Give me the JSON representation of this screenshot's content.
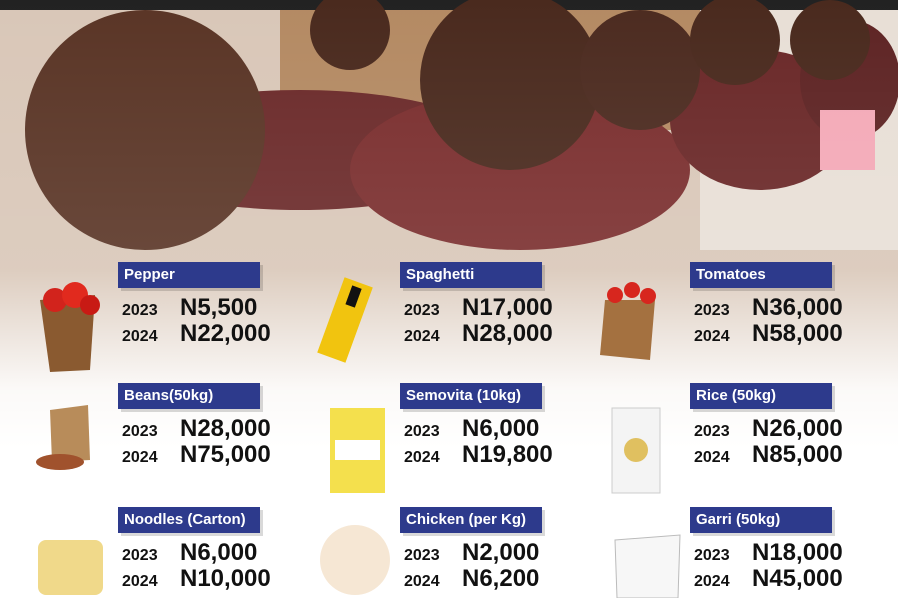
{
  "items": [
    {
      "name": "Pepper",
      "prices": [
        {
          "year": "2023",
          "price": "N5,500"
        },
        {
          "year": "2024",
          "price": "N22,000"
        }
      ]
    },
    {
      "name": "Spaghetti",
      "prices": [
        {
          "year": "2023",
          "price": "N17,000"
        },
        {
          "year": "2024",
          "price": "N28,000"
        }
      ]
    },
    {
      "name": "Tomatoes",
      "prices": [
        {
          "year": "2023",
          "price": "N36,000"
        },
        {
          "year": "2024",
          "price": "N58,000"
        }
      ]
    },
    {
      "name": "Beans(50kg)",
      "prices": [
        {
          "year": "2023",
          "price": "N28,000"
        },
        {
          "year": "2024",
          "price": "N75,000"
        }
      ]
    },
    {
      "name": "Semovita  (10kg)",
      "prices": [
        {
          "year": "2023",
          "price": "N6,000"
        },
        {
          "year": "2024",
          "price": "N19,800"
        }
      ]
    },
    {
      "name": "Rice (50kg)",
      "prices": [
        {
          "year": "2023",
          "price": "N26,000"
        },
        {
          "year": "2024",
          "price": "N85,000"
        }
      ]
    },
    {
      "name": "Noodles (Carton)",
      "prices": [
        {
          "year": "2023",
          "price": "N6,000"
        },
        {
          "year": "2024",
          "price": "N10,000"
        }
      ]
    },
    {
      "name": "Chicken (per Kg)",
      "prices": [
        {
          "year": "2023",
          "price": "N2,000"
        },
        {
          "year": "2024",
          "price": "N6,200"
        }
      ]
    },
    {
      "name": "Garri (50kg)",
      "prices": [
        {
          "year": "2023",
          "price": "N18,000"
        },
        {
          "year": "2024",
          "price": "N45,000"
        }
      ]
    }
  ]
}
